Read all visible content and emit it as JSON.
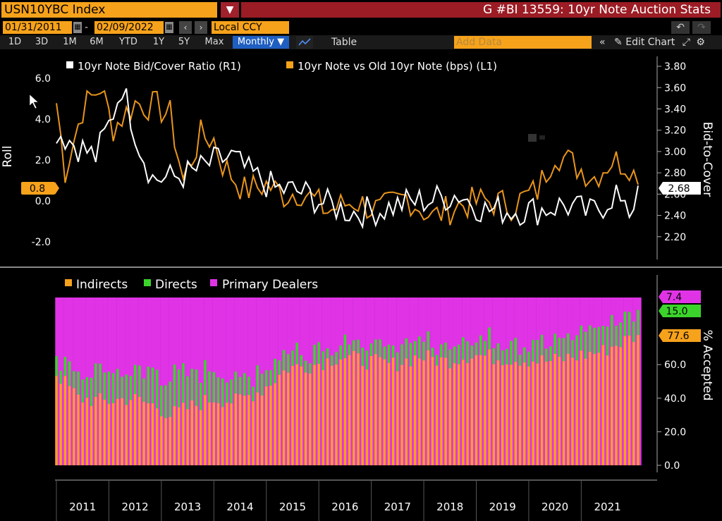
{
  "header": {
    "ticker": "USN10YBC Index",
    "menu_icon": "▼",
    "title": "G #BI 13559: 10yr Note Auction Stats"
  },
  "toolbar": {
    "start_date": "01/31/2011",
    "date_sep": "-",
    "end_date": "02/09/2022",
    "currency": "Local CCY",
    "periods": [
      "1D",
      "3D",
      "1M",
      "6M",
      "YTD",
      "1Y",
      "5Y",
      "Max"
    ],
    "frequency": "Monthly ▼",
    "table_label": "Table",
    "add_data_placeholder": "Add Data",
    "edit_chart_label": "Edit Chart"
  },
  "colors": {
    "orange": "#f7a21b",
    "white": "#ffffff",
    "green": "#3bd42b",
    "magenta": "#e033e6",
    "title_red": "#9b1c24"
  },
  "chart_data": [
    {
      "type": "line",
      "title": "",
      "ylabel_left": "Roll",
      "ylabel_right": "Bid-to-Cover",
      "ylim_left": [
        -2.8,
        6.8
      ],
      "ylim_right": [
        2.0,
        3.84
      ],
      "yticks_left": [
        "6.0",
        "4.0",
        "2.0",
        "0.0",
        "-2.0"
      ],
      "yticks_right": [
        "3.80",
        "3.60",
        "3.40",
        "3.20",
        "3.00",
        "2.80",
        "2.60",
        "2.40",
        "2.20"
      ],
      "last_value_left": "0.8",
      "last_value_right": "2.68",
      "x_start": "2011-01",
      "x_end": "2022-02",
      "legend_position": "top-left",
      "series": [
        {
          "name": "10yr Note Bid/Cover Ratio (R1)",
          "axis": "right",
          "color": "#ffffff",
          "anchors": [
            [
              "2011-01",
              3.2
            ],
            [
              "2011-06",
              3.05
            ],
            [
              "2011-10",
              2.95
            ],
            [
              "2012-01",
              3.25
            ],
            [
              "2012-04",
              3.62
            ],
            [
              "2012-08",
              3.05
            ],
            [
              "2012-11",
              2.75
            ],
            [
              "2013-03",
              2.75
            ],
            [
              "2013-08",
              2.8
            ],
            [
              "2014-01",
              2.9
            ],
            [
              "2014-05",
              2.95
            ],
            [
              "2014-09",
              2.8
            ],
            [
              "2015-03",
              2.65
            ],
            [
              "2015-09",
              2.62
            ],
            [
              "2016-03",
              2.5
            ],
            [
              "2016-09",
              2.43
            ],
            [
              "2017-03",
              2.45
            ],
            [
              "2017-09",
              2.52
            ],
            [
              "2018-03",
              2.55
            ],
            [
              "2018-09",
              2.6
            ],
            [
              "2019-03",
              2.45
            ],
            [
              "2019-09",
              2.45
            ],
            [
              "2020-03",
              2.45
            ],
            [
              "2020-09",
              2.5
            ],
            [
              "2021-03",
              2.42
            ],
            [
              "2021-06",
              2.5
            ],
            [
              "2021-09",
              2.62
            ],
            [
              "2021-11",
              2.4
            ],
            [
              "2022-01",
              2.5
            ],
            [
              "2022-02",
              2.68
            ]
          ]
        },
        {
          "name": "10yr Note vs Old 10yr Note (bps) (L1)",
          "axis": "left",
          "color": "#f7a21b",
          "anchors": [
            [
              "2011-01",
              4.8
            ],
            [
              "2011-03",
              1.5
            ],
            [
              "2011-07",
              4.5
            ],
            [
              "2011-11",
              5.6
            ],
            [
              "2012-02",
              3.6
            ],
            [
              "2012-07",
              4.8
            ],
            [
              "2012-12",
              4.6
            ],
            [
              "2013-03",
              4.2
            ],
            [
              "2013-06",
              1.0
            ],
            [
              "2013-10",
              3.2
            ],
            [
              "2014-01",
              3.0
            ],
            [
              "2014-03",
              1.8
            ],
            [
              "2014-08",
              0.5
            ],
            [
              "2015-01",
              0.8
            ],
            [
              "2015-05",
              0.3
            ],
            [
              "2015-09",
              0.5
            ],
            [
              "2016-03",
              -0.5
            ],
            [
              "2016-09",
              0.0
            ],
            [
              "2017-03",
              -0.5
            ],
            [
              "2017-09",
              0.2
            ],
            [
              "2018-03",
              -0.8
            ],
            [
              "2018-09",
              -0.2
            ],
            [
              "2019-03",
              0.0
            ],
            [
              "2019-09",
              -0.2
            ],
            [
              "2020-03",
              0.5
            ],
            [
              "2020-07",
              2.4
            ],
            [
              "2020-11",
              1.8
            ],
            [
              "2021-04",
              1.2
            ],
            [
              "2021-08",
              2.0
            ],
            [
              "2021-12",
              1.8
            ],
            [
              "2022-02",
              0.8
            ]
          ]
        }
      ]
    },
    {
      "type": "bar",
      "stacked": true,
      "title": "",
      "ylabel": "% Accepted",
      "ylim": [
        0,
        100
      ],
      "yticks": [
        "60.0",
        "40.0",
        "20.0",
        "0.0"
      ],
      "last_values": {
        "primary_dealers": "7.4",
        "directs": "15.0",
        "indirects": "77.6"
      },
      "legend_position": "top-left",
      "x_start": "2011-01",
      "x_end": "2022-02",
      "series": [
        {
          "name": "Indirects",
          "color": "#f7a21b",
          "anchors": [
            [
              "2011-01",
              55
            ],
            [
              "2011-06",
              40
            ],
            [
              "2011-12",
              38
            ],
            [
              "2012-06",
              40
            ],
            [
              "2012-12",
              35
            ],
            [
              "2013-03",
              30
            ],
            [
              "2013-08",
              35
            ],
            [
              "2014-01",
              40
            ],
            [
              "2014-06",
              38
            ],
            [
              "2014-12",
              45
            ],
            [
              "2015-06",
              58
            ],
            [
              "2015-12",
              60
            ],
            [
              "2016-06",
              65
            ],
            [
              "2016-12",
              62
            ],
            [
              "2017-06",
              60
            ],
            [
              "2017-12",
              65
            ],
            [
              "2018-06",
              62
            ],
            [
              "2018-12",
              66
            ],
            [
              "2019-06",
              64
            ],
            [
              "2019-12",
              63
            ],
            [
              "2020-06",
              62
            ],
            [
              "2020-12",
              65
            ],
            [
              "2021-06",
              68
            ],
            [
              "2021-09",
              72
            ],
            [
              "2022-02",
              77.6
            ]
          ]
        },
        {
          "name": "Directs",
          "color": "#3bd42b",
          "anchors": [
            [
              "2011-01",
              10
            ],
            [
              "2011-12",
              20
            ],
            [
              "2012-06",
              15
            ],
            [
              "2013-03",
              22
            ],
            [
              "2013-12",
              18
            ],
            [
              "2014-06",
              14
            ],
            [
              "2015-06",
              10
            ],
            [
              "2016-06",
              10
            ],
            [
              "2017-06",
              11
            ],
            [
              "2018-06",
              9
            ],
            [
              "2019-06",
              11
            ],
            [
              "2020-06",
              10
            ],
            [
              "2021-06",
              15
            ],
            [
              "2022-02",
              15.0
            ]
          ]
        },
        {
          "name": "Primary Dealers",
          "color": "#e033e6",
          "fill_to": 100
        }
      ]
    }
  ],
  "x_axis": {
    "labels": [
      "2011",
      "2012",
      "2013",
      "2014",
      "2015",
      "2016",
      "2017",
      "2018",
      "2019",
      "2020",
      "2021"
    ]
  }
}
